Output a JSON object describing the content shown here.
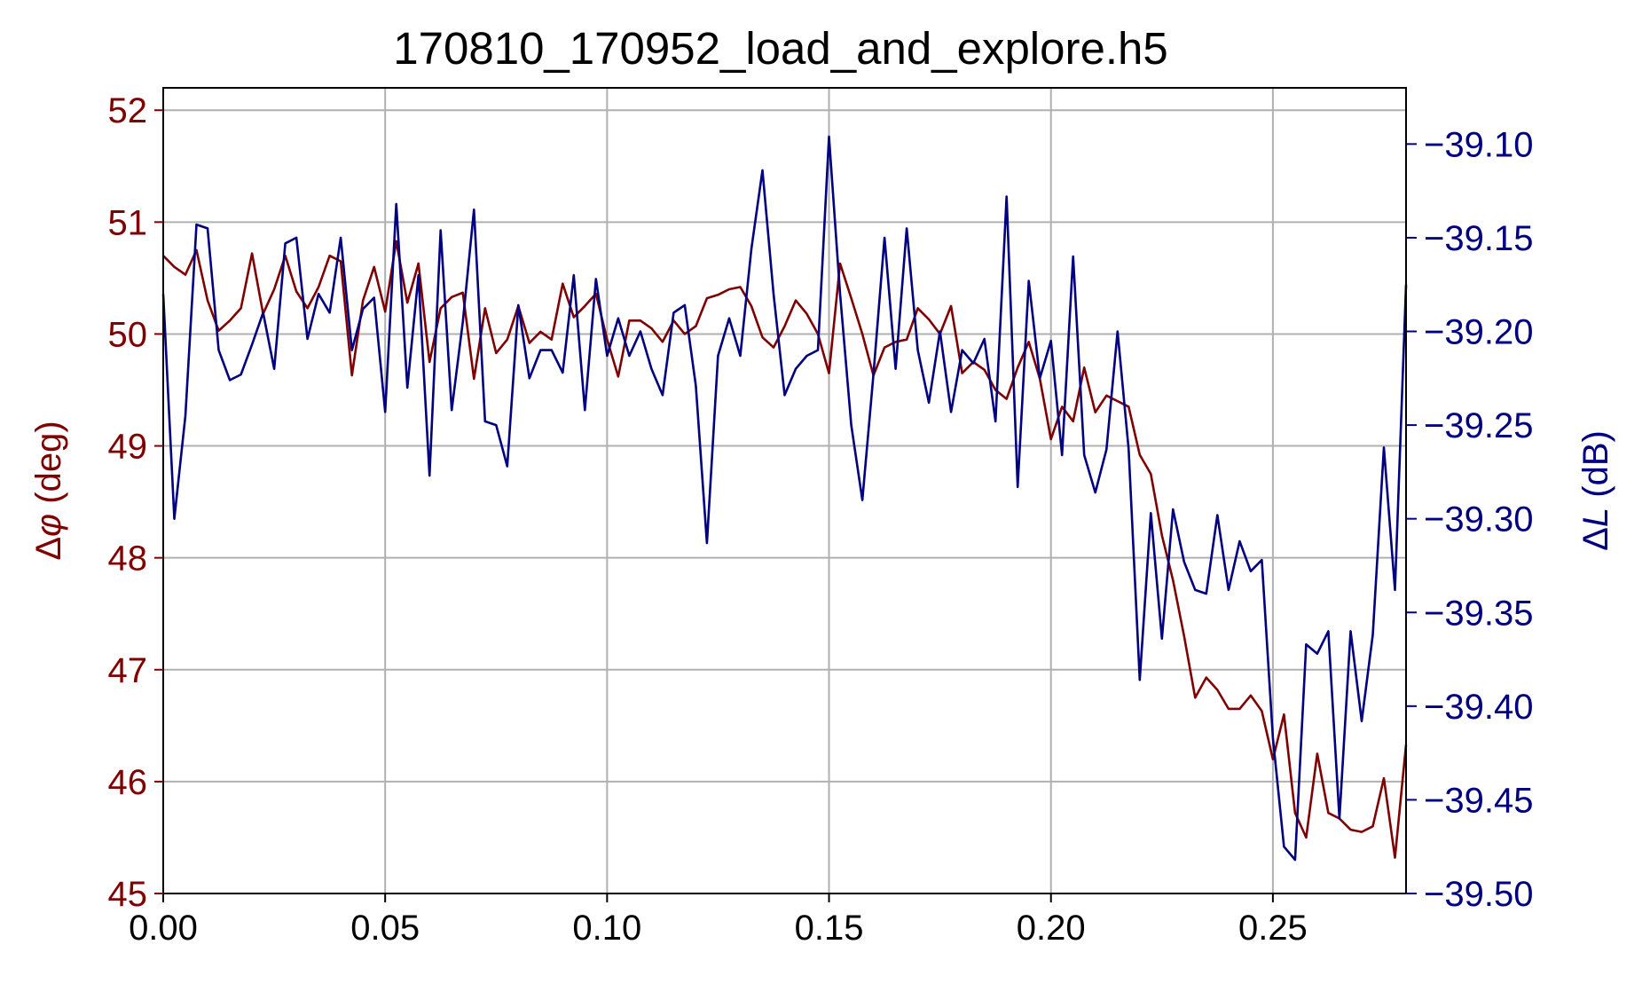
{
  "chart_data": {
    "type": "line",
    "title": "170810_170952_load_and_explore.h5",
    "xlim": [
      0,
      0.28
    ],
    "x_ticks": [
      0,
      0.05,
      0.1,
      0.15,
      0.2,
      0.25
    ],
    "x_tick_labels": [
      "0.00",
      "0.05",
      "0.10",
      "0.15",
      "0.20",
      "0.25"
    ],
    "grid": true,
    "left_axis": {
      "label_prefix": "Δ",
      "label_symbol": "φ",
      "label_suffix": " (deg)",
      "color": "#7f0000",
      "ylim": [
        45,
        52.2
      ],
      "ticks": [
        45,
        46,
        47,
        48,
        49,
        50,
        51,
        52
      ],
      "tick_labels": [
        "45",
        "46",
        "47",
        "48",
        "49",
        "50",
        "51",
        "52"
      ]
    },
    "right_axis": {
      "label_prefix": "Δ",
      "label_symbol": "L",
      "label_suffix": " (dB)",
      "color": "#000080",
      "ylim": [
        -39.5,
        -39.07
      ],
      "ticks": [
        -39.5,
        -39.45,
        -39.4,
        -39.35,
        -39.3,
        -39.25,
        -39.2,
        -39.15,
        -39.1
      ],
      "tick_labels": [
        "−39.50",
        "−39.45",
        "−39.40",
        "−39.35",
        "−39.30",
        "−39.25",
        "−39.20",
        "−39.15",
        "−39.10"
      ]
    },
    "series": [
      {
        "axis": "left",
        "color": "#7f0000",
        "points": [
          [
            0,
            50.7
          ],
          [
            0.0025,
            50.6
          ],
          [
            0.005,
            50.53
          ],
          [
            0.0075,
            50.75
          ],
          [
            0.01,
            50.3
          ],
          [
            0.0125,
            50.03
          ],
          [
            0.015,
            50.12
          ],
          [
            0.0175,
            50.23
          ],
          [
            0.02,
            50.72
          ],
          [
            0.0225,
            50.18
          ],
          [
            0.025,
            50.4
          ],
          [
            0.0275,
            50.7
          ],
          [
            0.03,
            50.38
          ],
          [
            0.0325,
            50.23
          ],
          [
            0.035,
            50.42
          ],
          [
            0.0375,
            50.7
          ],
          [
            0.04,
            50.65
          ],
          [
            0.0425,
            49.63
          ],
          [
            0.045,
            50.3
          ],
          [
            0.0475,
            50.6
          ],
          [
            0.05,
            50.2
          ],
          [
            0.0525,
            50.83
          ],
          [
            0.055,
            50.28
          ],
          [
            0.0575,
            50.63
          ],
          [
            0.06,
            49.75
          ],
          [
            0.0625,
            50.23
          ],
          [
            0.065,
            50.33
          ],
          [
            0.0675,
            50.37
          ],
          [
            0.07,
            49.6
          ],
          [
            0.0725,
            50.23
          ],
          [
            0.075,
            49.83
          ],
          [
            0.0775,
            49.95
          ],
          [
            0.08,
            50.25
          ],
          [
            0.0825,
            49.92
          ],
          [
            0.085,
            50.02
          ],
          [
            0.0875,
            49.95
          ],
          [
            0.09,
            50.45
          ],
          [
            0.0925,
            50.15
          ],
          [
            0.095,
            50.25
          ],
          [
            0.0975,
            50.36
          ],
          [
            0.1,
            49.95
          ],
          [
            0.1025,
            49.62
          ],
          [
            0.105,
            50.12
          ],
          [
            0.1075,
            50.12
          ],
          [
            0.11,
            50.05
          ],
          [
            0.1125,
            49.93
          ],
          [
            0.115,
            50.12
          ],
          [
            0.1175,
            50.0
          ],
          [
            0.12,
            50.07
          ],
          [
            0.1225,
            50.32
          ],
          [
            0.125,
            50.35
          ],
          [
            0.1275,
            50.4
          ],
          [
            0.13,
            50.42
          ],
          [
            0.1325,
            50.25
          ],
          [
            0.135,
            49.97
          ],
          [
            0.1375,
            49.88
          ],
          [
            0.14,
            50.07
          ],
          [
            0.1425,
            50.3
          ],
          [
            0.145,
            50.18
          ],
          [
            0.1475,
            50.0
          ],
          [
            0.15,
            49.65
          ],
          [
            0.1525,
            50.63
          ],
          [
            0.155,
            50.32
          ],
          [
            0.1575,
            50.0
          ],
          [
            0.16,
            49.63
          ],
          [
            0.1625,
            49.88
          ],
          [
            0.165,
            49.93
          ],
          [
            0.1675,
            49.95
          ],
          [
            0.17,
            50.23
          ],
          [
            0.1725,
            50.13
          ],
          [
            0.175,
            50.0
          ],
          [
            0.1775,
            50.25
          ],
          [
            0.18,
            49.65
          ],
          [
            0.1825,
            49.75
          ],
          [
            0.185,
            49.68
          ],
          [
            0.1875,
            49.5
          ],
          [
            0.19,
            49.42
          ],
          [
            0.1925,
            49.7
          ],
          [
            0.195,
            49.93
          ],
          [
            0.1975,
            49.6
          ],
          [
            0.2,
            49.06
          ],
          [
            0.2025,
            49.35
          ],
          [
            0.205,
            49.22
          ],
          [
            0.2075,
            49.7
          ],
          [
            0.21,
            49.3
          ],
          [
            0.2125,
            49.45
          ],
          [
            0.215,
            49.4
          ],
          [
            0.2175,
            49.35
          ],
          [
            0.22,
            48.92
          ],
          [
            0.2225,
            48.75
          ],
          [
            0.225,
            48.2
          ],
          [
            0.2275,
            47.8
          ],
          [
            0.23,
            47.3
          ],
          [
            0.2325,
            46.75
          ],
          [
            0.235,
            46.93
          ],
          [
            0.2375,
            46.82
          ],
          [
            0.24,
            46.65
          ],
          [
            0.2425,
            46.65
          ],
          [
            0.245,
            46.77
          ],
          [
            0.2475,
            46.63
          ],
          [
            0.25,
            46.2
          ],
          [
            0.2525,
            46.6
          ],
          [
            0.255,
            45.72
          ],
          [
            0.2575,
            45.5
          ],
          [
            0.26,
            46.25
          ],
          [
            0.2625,
            45.72
          ],
          [
            0.265,
            45.67
          ],
          [
            0.2675,
            45.57
          ],
          [
            0.27,
            45.55
          ],
          [
            0.2725,
            45.6
          ],
          [
            0.275,
            46.03
          ],
          [
            0.2775,
            45.32
          ],
          [
            0.28,
            46.33
          ]
        ]
      },
      {
        "axis": "right",
        "color": "#000080",
        "points": [
          [
            0,
            -39.18
          ],
          [
            0.0025,
            -39.3
          ],
          [
            0.005,
            -39.245
          ],
          [
            0.0075,
            -39.143
          ],
          [
            0.01,
            -39.145
          ],
          [
            0.0125,
            -39.21
          ],
          [
            0.015,
            -39.226
          ],
          [
            0.0175,
            -39.223
          ],
          [
            0.02,
            -39.207
          ],
          [
            0.0225,
            -39.19
          ],
          [
            0.025,
            -39.22
          ],
          [
            0.0275,
            -39.153
          ],
          [
            0.03,
            -39.15
          ],
          [
            0.0325,
            -39.204
          ],
          [
            0.035,
            -39.18
          ],
          [
            0.0375,
            -39.19
          ],
          [
            0.04,
            -39.15
          ],
          [
            0.0425,
            -39.21
          ],
          [
            0.045,
            -39.188
          ],
          [
            0.0475,
            -39.182
          ],
          [
            0.05,
            -39.243
          ],
          [
            0.0525,
            -39.132
          ],
          [
            0.055,
            -39.23
          ],
          [
            0.0575,
            -39.17
          ],
          [
            0.06,
            -39.277
          ],
          [
            0.0625,
            -39.146
          ],
          [
            0.065,
            -39.242
          ],
          [
            0.0675,
            -39.195
          ],
          [
            0.07,
            -39.135
          ],
          [
            0.0725,
            -39.248
          ],
          [
            0.075,
            -39.25
          ],
          [
            0.0775,
            -39.272
          ],
          [
            0.08,
            -39.186
          ],
          [
            0.0825,
            -39.225
          ],
          [
            0.085,
            -39.21
          ],
          [
            0.0875,
            -39.21
          ],
          [
            0.09,
            -39.222
          ],
          [
            0.0925,
            -39.17
          ],
          [
            0.095,
            -39.242
          ],
          [
            0.0975,
            -39.172
          ],
          [
            0.1,
            -39.213
          ],
          [
            0.1025,
            -39.193
          ],
          [
            0.105,
            -39.213
          ],
          [
            0.1075,
            -39.2
          ],
          [
            0.11,
            -39.22
          ],
          [
            0.1125,
            -39.234
          ],
          [
            0.115,
            -39.19
          ],
          [
            0.1175,
            -39.186
          ],
          [
            0.12,
            -39.229
          ],
          [
            0.1225,
            -39.313
          ],
          [
            0.125,
            -39.213
          ],
          [
            0.1275,
            -39.193
          ],
          [
            0.13,
            -39.213
          ],
          [
            0.1325,
            -39.156
          ],
          [
            0.135,
            -39.114
          ],
          [
            0.1375,
            -39.18
          ],
          [
            0.14,
            -39.234
          ],
          [
            0.1425,
            -39.22
          ],
          [
            0.145,
            -39.213
          ],
          [
            0.1475,
            -39.21
          ],
          [
            0.15,
            -39.096
          ],
          [
            0.1525,
            -39.18
          ],
          [
            0.155,
            -39.25
          ],
          [
            0.1575,
            -39.29
          ],
          [
            0.16,
            -39.223
          ],
          [
            0.1625,
            -39.15
          ],
          [
            0.165,
            -39.22
          ],
          [
            0.1675,
            -39.145
          ],
          [
            0.17,
            -39.21
          ],
          [
            0.1725,
            -39.238
          ],
          [
            0.175,
            -39.2
          ],
          [
            0.1775,
            -39.243
          ],
          [
            0.18,
            -39.21
          ],
          [
            0.1825,
            -39.217
          ],
          [
            0.185,
            -39.204
          ],
          [
            0.1875,
            -39.248
          ],
          [
            0.19,
            -39.128
          ],
          [
            0.1925,
            -39.283
          ],
          [
            0.195,
            -39.173
          ],
          [
            0.1975,
            -39.225
          ],
          [
            0.2,
            -39.205
          ],
          [
            0.2025,
            -39.266
          ],
          [
            0.205,
            -39.16
          ],
          [
            0.2075,
            -39.266
          ],
          [
            0.21,
            -39.286
          ],
          [
            0.2125,
            -39.263
          ],
          [
            0.215,
            -39.2
          ],
          [
            0.2175,
            -39.263
          ],
          [
            0.22,
            -39.386
          ],
          [
            0.2225,
            -39.297
          ],
          [
            0.225,
            -39.364
          ],
          [
            0.2275,
            -39.295
          ],
          [
            0.23,
            -39.323
          ],
          [
            0.2325,
            -39.338
          ],
          [
            0.235,
            -39.34
          ],
          [
            0.2375,
            -39.298
          ],
          [
            0.24,
            -39.338
          ],
          [
            0.2425,
            -39.312
          ],
          [
            0.245,
            -39.328
          ],
          [
            0.2475,
            -39.322
          ],
          [
            0.25,
            -39.417
          ],
          [
            0.2525,
            -39.475
          ],
          [
            0.255,
            -39.482
          ],
          [
            0.2575,
            -39.367
          ],
          [
            0.26,
            -39.372
          ],
          [
            0.2625,
            -39.36
          ],
          [
            0.265,
            -39.46
          ],
          [
            0.2675,
            -39.36
          ],
          [
            0.27,
            -39.408
          ],
          [
            0.2725,
            -39.362
          ],
          [
            0.275,
            -39.262
          ],
          [
            0.2775,
            -39.338
          ],
          [
            0.28,
            -39.175
          ]
        ]
      }
    ]
  }
}
